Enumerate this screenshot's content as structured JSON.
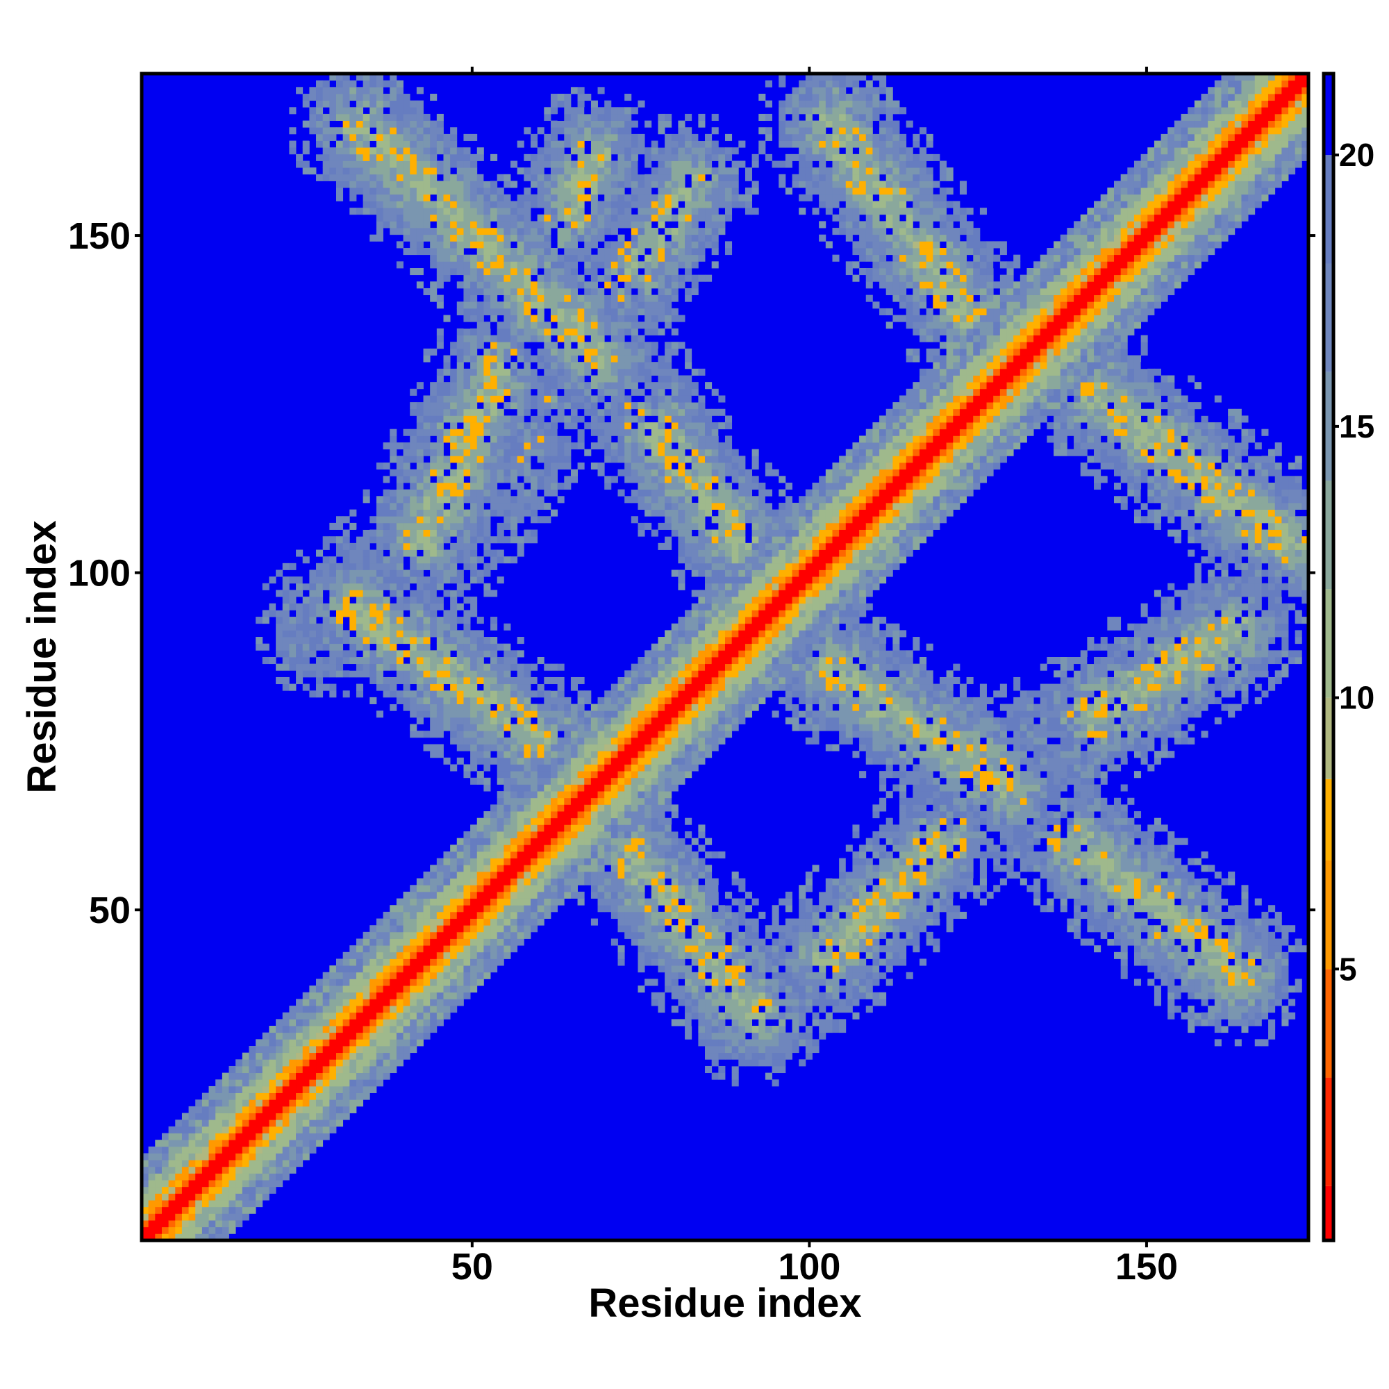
{
  "chart_data": {
    "type": "heatmap",
    "title": "",
    "xlabel": "Residue index",
    "ylabel": "Residue index",
    "n_residues": 174,
    "xlim": [
      1,
      174
    ],
    "ylim": [
      1,
      174
    ],
    "x_ticks": [
      50,
      100,
      150
    ],
    "y_ticks": [
      50,
      100,
      150
    ],
    "colorbar": {
      "range": [
        0,
        21.5
      ],
      "ticks": [
        5,
        10,
        15,
        20
      ],
      "levels": [
        {
          "max": 1,
          "color": "#ff0000"
        },
        {
          "max": 3,
          "color": "#ff2800"
        },
        {
          "max": 5,
          "color": "#ff6600"
        },
        {
          "max": 7,
          "color": "#ff9900"
        },
        {
          "max": 8.5,
          "color": "#ffb000"
        },
        {
          "max": 10,
          "color": "#b0b880"
        },
        {
          "max": 12,
          "color": "#9fb98c"
        },
        {
          "max": 14,
          "color": "#8aa89c"
        },
        {
          "max": 16,
          "color": "#7a96b0"
        },
        {
          "max": 18,
          "color": "#6f86bd"
        },
        {
          "max": 20,
          "color": "#667dc0"
        },
        {
          "max": 21.5,
          "color": "#0000f2"
        }
      ]
    },
    "background_color": "#0000f2",
    "diagonal": {
      "from": 1,
      "to": 174,
      "core_color": "#ff0000",
      "rim_color": "#ff9900",
      "halo_color": "#9fb98c"
    },
    "off_diagonal_bands": [
      {
        "from": [
          33,
          167
        ],
        "to": [
          69,
          132
        ]
      },
      {
        "from": [
          69,
          132
        ],
        "to": [
          91,
          103
        ]
      },
      {
        "from": [
          32,
          95
        ],
        "to": [
          60,
          75
        ]
      },
      {
        "from": [
          60,
          75
        ],
        "to": [
          92,
          34
        ]
      },
      {
        "from": [
          68,
          162
        ],
        "to": [
          42,
          104
        ]
      },
      {
        "from": [
          42,
          104
        ],
        "to": [
          28,
          92
        ]
      },
      {
        "from": [
          82,
          158
        ],
        "to": [
          62,
          128
        ]
      },
      {
        "from": [
          62,
          128
        ],
        "to": [
          45,
          104
        ]
      },
      {
        "from": [
          103,
          167
        ],
        "to": [
          130,
          130
        ]
      },
      {
        "from": [
          136,
          132
        ],
        "to": [
          172,
          104
        ]
      },
      {
        "from": [
          103,
          86
        ],
        "to": [
          130,
          68
        ]
      },
      {
        "from": [
          130,
          68
        ],
        "to": [
          164,
          40
        ]
      },
      {
        "from": [
          102,
          42
        ],
        "to": [
          132,
          72
        ]
      },
      {
        "from": [
          132,
          72
        ],
        "to": [
          164,
          92
        ]
      }
    ],
    "grid": false,
    "legend": "colorbar-right"
  }
}
